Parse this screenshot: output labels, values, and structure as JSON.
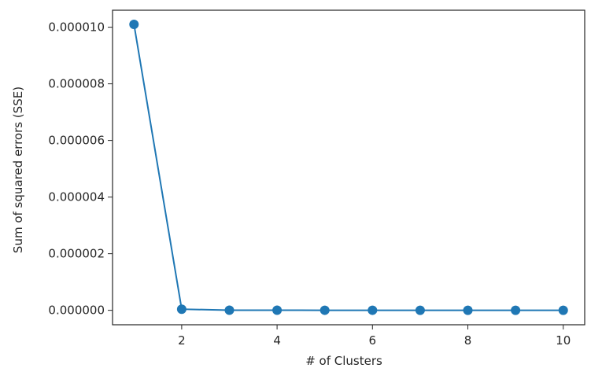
{
  "chart_data": {
    "type": "line",
    "title": "",
    "xlabel": "# of Clusters",
    "ylabel": "Sum of squared errors (SSE)",
    "x": [
      1,
      2,
      3,
      4,
      5,
      6,
      7,
      8,
      9,
      10
    ],
    "series": [
      {
        "values": [
          1.01e-05,
          4e-08,
          5e-09,
          3e-09,
          2e-09,
          2e-09,
          1e-09,
          1e-09,
          1e-09,
          1e-09
        ],
        "color": "#1f77b4",
        "marker": "circle"
      }
    ],
    "xlim": [
      0.55,
      10.45
    ],
    "ylim": [
      -5.1e-07,
      1.06e-05
    ],
    "xticks": [
      2,
      4,
      6,
      8,
      10
    ],
    "xtick_labels": [
      "2",
      "4",
      "6",
      "8",
      "10"
    ],
    "yticks": [
      0,
      2e-06,
      4e-06,
      6e-06,
      8e-06,
      1e-05
    ],
    "ytick_labels": [
      "0.000000",
      "0.000002",
      "0.000004",
      "0.000006",
      "0.000008",
      "0.000010"
    ],
    "grid": false,
    "legend": "none"
  }
}
